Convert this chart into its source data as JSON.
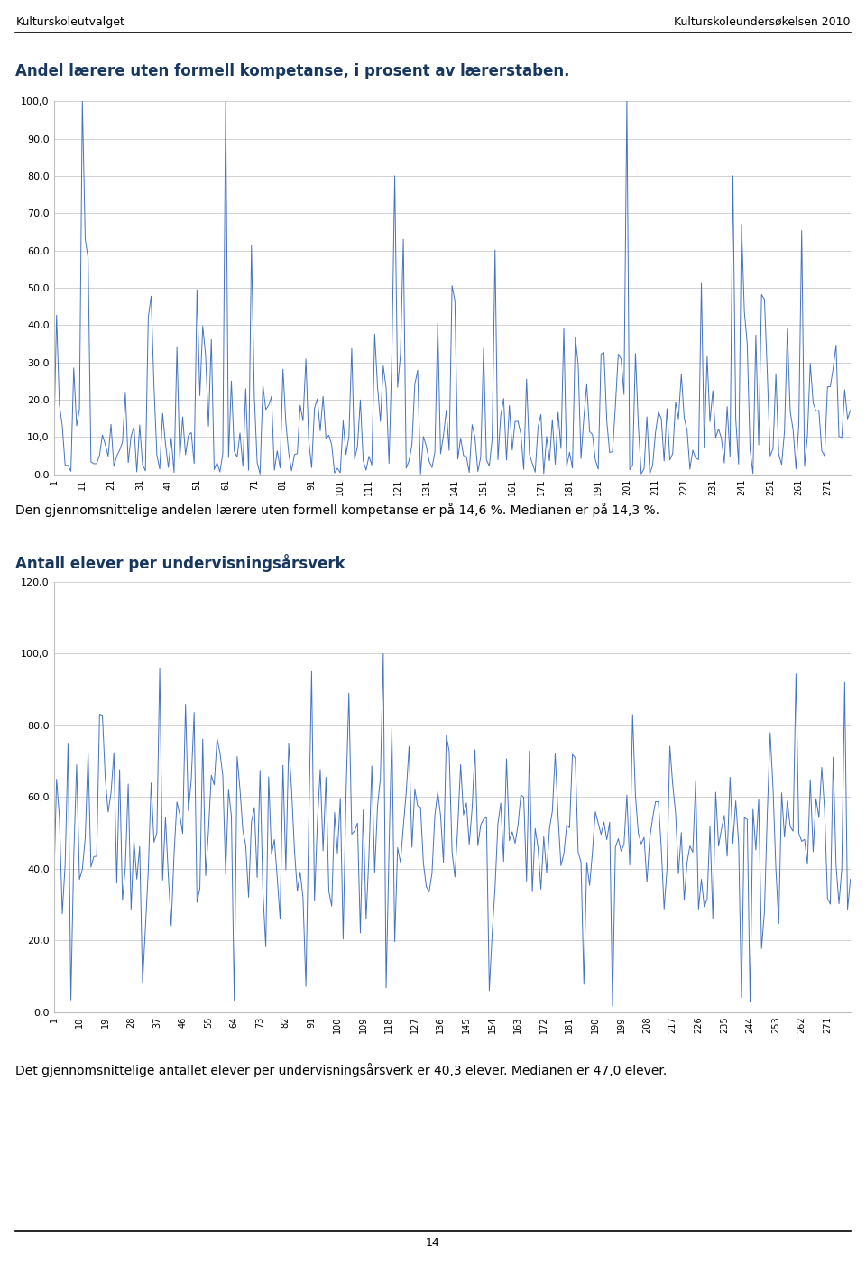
{
  "header_left": "Kulturskoleutvalget",
  "header_right": "Kulturskoleundersøkelsen 2010",
  "chart1_title": "Andel lærere uten formell kompetanse, i prosent av lærerstaben.",
  "chart1_yticks": [
    "0,0",
    "10,0",
    "20,0",
    "30,0",
    "40,0",
    "50,0",
    "60,0",
    "70,0",
    "80,0",
    "90,0",
    "100,0"
  ],
  "chart1_ytick_vals": [
    0,
    10,
    20,
    30,
    40,
    50,
    60,
    70,
    80,
    90,
    100
  ],
  "chart1_xticks": [
    1,
    11,
    21,
    31,
    41,
    51,
    61,
    71,
    81,
    91,
    101,
    111,
    121,
    131,
    141,
    151,
    161,
    171,
    181,
    191,
    201,
    211,
    221,
    231,
    241,
    251,
    261,
    271
  ],
  "chart1_text": "Den gjennomsnittelige andelen lærere uten formell kompetanse er på 14,6 %. Medianen er på 14,3 %.",
  "chart2_title": "Antall elever per undervisningsårsverk",
  "chart2_yticks": [
    "0,0",
    "20,0",
    "40,0",
    "60,0",
    "80,0",
    "100,0",
    "120,0"
  ],
  "chart2_ytick_vals": [
    0,
    20,
    40,
    60,
    80,
    100,
    120
  ],
  "chart2_xticks": [
    1,
    10,
    19,
    28,
    37,
    46,
    55,
    64,
    73,
    82,
    91,
    100,
    109,
    118,
    127,
    136,
    145,
    154,
    163,
    172,
    181,
    190,
    199,
    208,
    217,
    226,
    235,
    244,
    253,
    262,
    271
  ],
  "chart2_text": "Det gjennomsnittelige antallet elever per undervisningsårsverk er 40,3 elever. Medianen er 47,0 elever.",
  "line_color": "#4472C4",
  "title_color": "#17375E",
  "header_color": "#000000",
  "text_color": "#000000",
  "bg_color": "#FFFFFF",
  "plot_bg_color": "#FFFFFF",
  "grid_color": "#BFBFBF",
  "n_points": 279,
  "footer_text": "14"
}
